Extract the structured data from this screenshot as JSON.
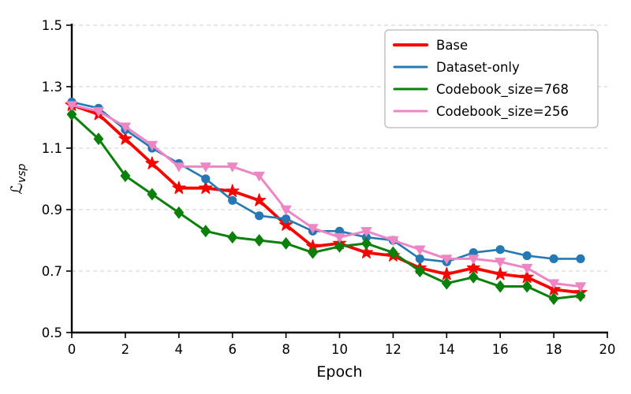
{
  "chart_data": {
    "type": "line",
    "title": "",
    "xlabel": "Epoch",
    "ylabel": "L_vsp",
    "ylabel_main": "ℒ",
    "ylabel_sub": "vsp",
    "xlim": [
      0,
      20
    ],
    "ylim": [
      0.5,
      1.5
    ],
    "xticks": [
      0,
      2,
      4,
      6,
      8,
      10,
      12,
      14,
      16,
      18,
      20
    ],
    "yticks": [
      0.5,
      0.7,
      0.9,
      1.1,
      1.3,
      1.5
    ],
    "grid": "horizontal-dashed",
    "grid_color": "#cfcfcf",
    "axis_color": "#000000",
    "legend_position": "upper-right",
    "x": [
      0,
      1,
      2,
      3,
      4,
      5,
      6,
      7,
      8,
      9,
      10,
      11,
      12,
      13,
      14,
      15,
      16,
      17,
      18,
      19
    ],
    "series": [
      {
        "name": "Base",
        "color": "#f80400",
        "marker": "star",
        "linewidth": 3.8,
        "values": [
          1.24,
          1.21,
          1.13,
          1.05,
          0.97,
          0.97,
          0.96,
          0.93,
          0.85,
          0.78,
          0.79,
          0.76,
          0.75,
          0.71,
          0.69,
          0.71,
          0.69,
          0.68,
          0.64,
          0.63
        ]
      },
      {
        "name": "Dataset-only",
        "color": "#2478b4",
        "marker": "circle",
        "linewidth": 2.6,
        "values": [
          1.25,
          1.23,
          1.16,
          1.1,
          1.05,
          1.0,
          0.93,
          0.88,
          0.87,
          0.83,
          0.83,
          0.81,
          0.8,
          0.74,
          0.73,
          0.76,
          0.77,
          0.75,
          0.74,
          0.74
        ]
      },
      {
        "name": "Codebook_size=768",
        "color": "#0b810b",
        "marker": "diamond",
        "linewidth": 3.0,
        "values": [
          1.21,
          1.13,
          1.01,
          0.95,
          0.89,
          0.83,
          0.81,
          0.8,
          0.79,
          0.76,
          0.78,
          0.79,
          0.76,
          0.7,
          0.66,
          0.68,
          0.65,
          0.65,
          0.61,
          0.62
        ]
      },
      {
        "name": "Codebook_size=256",
        "color": "#ee86c5",
        "marker": "triangle-down",
        "linewidth": 3.0,
        "values": [
          1.24,
          1.22,
          1.17,
          1.11,
          1.04,
          1.04,
          1.04,
          1.01,
          0.9,
          0.84,
          0.81,
          0.83,
          0.8,
          0.77,
          0.74,
          0.74,
          0.73,
          0.71,
          0.66,
          0.65
        ]
      }
    ]
  }
}
